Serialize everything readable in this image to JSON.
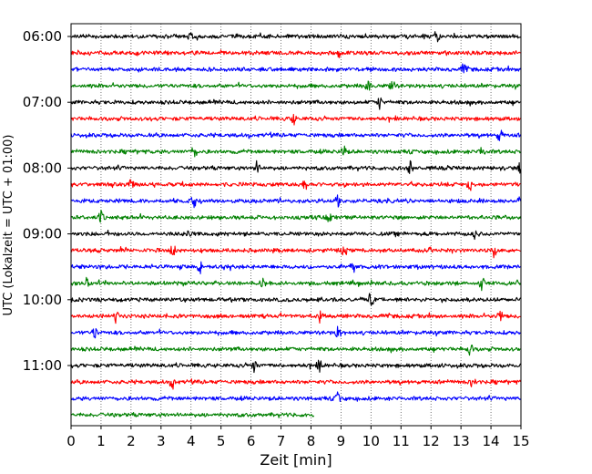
{
  "chart_data": {
    "type": "line",
    "title": "",
    "xlabel": "Zeit  [min]",
    "ylabel": "UTC (Lokalzeit = UTC + 01:00)",
    "xlim": [
      0,
      15
    ],
    "x_ticks": [
      0,
      1,
      2,
      3,
      4,
      5,
      6,
      7,
      8,
      9,
      10,
      11,
      12,
      13,
      14,
      15
    ],
    "y_tick_labels": [
      "06:00",
      "07:00",
      "08:00",
      "09:00",
      "10:00",
      "11:00"
    ],
    "row_interval_min": 15,
    "grid": "vertical-dotted",
    "colors": [
      "#000000",
      "#ff0000",
      "#0000ff",
      "#008000"
    ],
    "series": [
      {
        "start": "06:00",
        "color": "black",
        "end_min": 15,
        "events": [
          4.0,
          12.2
        ]
      },
      {
        "start": "06:15",
        "color": "red",
        "end_min": 15,
        "events": [
          8.9
        ]
      },
      {
        "start": "06:30",
        "color": "blue",
        "end_min": 15,
        "events": [
          13.1
        ]
      },
      {
        "start": "06:45",
        "color": "green",
        "end_min": 15,
        "events": [
          9.9,
          10.7
        ]
      },
      {
        "start": "07:00",
        "color": "black",
        "end_min": 15,
        "events": [
          10.3
        ]
      },
      {
        "start": "07:15",
        "color": "red",
        "end_min": 15,
        "events": [
          7.4
        ]
      },
      {
        "start": "07:30",
        "color": "blue",
        "end_min": 15,
        "events": [
          14.3
        ]
      },
      {
        "start": "07:45",
        "color": "green",
        "end_min": 15,
        "events": [
          4.1,
          9.1,
          13.7
        ]
      },
      {
        "start": "08:00",
        "color": "black",
        "end_min": 15,
        "events": [
          6.2,
          11.3,
          15.0
        ]
      },
      {
        "start": "08:15",
        "color": "red",
        "end_min": 15,
        "events": [
          2.0,
          7.8,
          13.3
        ]
      },
      {
        "start": "08:30",
        "color": "blue",
        "end_min": 15,
        "events": [
          4.1,
          8.9,
          15.0
        ]
      },
      {
        "start": "08:45",
        "color": "green",
        "end_min": 15,
        "events": [
          1.0,
          8.6
        ]
      },
      {
        "start": "09:00",
        "color": "black",
        "end_min": 15,
        "events": [
          3.9,
          13.5
        ]
      },
      {
        "start": "09:15",
        "color": "red",
        "end_min": 15,
        "events": [
          3.4,
          9.1,
          14.1
        ]
      },
      {
        "start": "09:30",
        "color": "blue",
        "end_min": 15,
        "events": [
          4.3,
          9.4
        ]
      },
      {
        "start": "09:45",
        "color": "green",
        "end_min": 15,
        "events": [
          0.5,
          6.4,
          13.7
        ]
      },
      {
        "start": "10:00",
        "color": "black",
        "end_min": 15,
        "events": [
          10.0
        ]
      },
      {
        "start": "10:15",
        "color": "red",
        "end_min": 15,
        "events": [
          1.5,
          8.3,
          14.3
        ]
      },
      {
        "start": "10:30",
        "color": "blue",
        "end_min": 15,
        "events": [
          0.8,
          8.9
        ]
      },
      {
        "start": "10:45",
        "color": "green",
        "end_min": 15,
        "events": [
          13.3
        ]
      },
      {
        "start": "11:00",
        "color": "black",
        "end_min": 15,
        "events": [
          6.1,
          8.3
        ]
      },
      {
        "start": "11:15",
        "color": "red",
        "end_min": 15,
        "events": [
          3.4,
          13.4
        ]
      },
      {
        "start": "11:30",
        "color": "blue",
        "end_min": 15,
        "events": [
          8.9
        ]
      },
      {
        "start": "11:45",
        "color": "green",
        "end_min": 8.1,
        "events": []
      }
    ]
  }
}
